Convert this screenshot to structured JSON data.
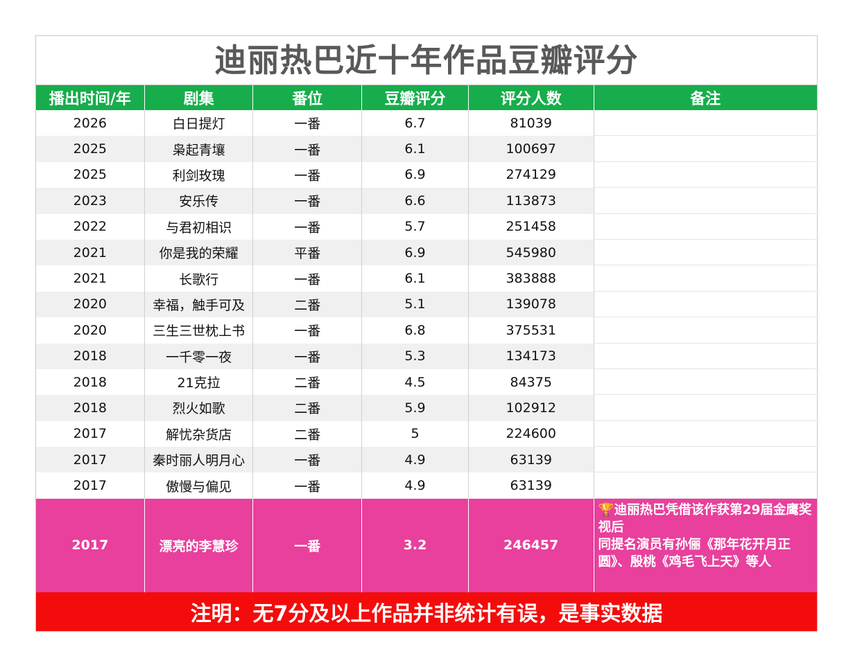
{
  "title": "迪丽热巴近十年作品豆瓣评分",
  "headers": [
    "播出时间/年",
    "剧集",
    "番位",
    "豆瓣评分",
    "评分人数",
    "备注"
  ],
  "rows": [
    {
      "year": "2026",
      "drama": "白日提灯",
      "billing": "一番",
      "score": "6.7",
      "votes": "81039",
      "note": ""
    },
    {
      "year": "2025",
      "drama": "枭起青壤",
      "billing": "一番",
      "score": "6.1",
      "votes": "100697",
      "note": ""
    },
    {
      "year": "2025",
      "drama": "利剑玫瑰",
      "billing": "一番",
      "score": "6.9",
      "votes": "274129",
      "note": ""
    },
    {
      "year": "2023",
      "drama": "安乐传",
      "billing": "一番",
      "score": "6.6",
      "votes": "113873",
      "note": ""
    },
    {
      "year": "2022",
      "drama": "与君初相识",
      "billing": "一番",
      "score": "5.7",
      "votes": "251458",
      "note": ""
    },
    {
      "year": "2021",
      "drama": "你是我的荣耀",
      "billing": "平番",
      "score": "6.9",
      "votes": "545980",
      "note": ""
    },
    {
      "year": "2021",
      "drama": "长歌行",
      "billing": "一番",
      "score": "6.1",
      "votes": "383888",
      "note": ""
    },
    {
      "year": "2020",
      "drama": "幸福，触手可及",
      "billing": "二番",
      "score": "5.1",
      "votes": "139078",
      "note": ""
    },
    {
      "year": "2020",
      "drama": "三生三世枕上书",
      "billing": "一番",
      "score": "6.8",
      "votes": "375531",
      "note": ""
    },
    {
      "year": "2018",
      "drama": "一千零一夜",
      "billing": "一番",
      "score": "5.3",
      "votes": "134173",
      "note": ""
    },
    {
      "year": "2018",
      "drama": "21克拉",
      "billing": "二番",
      "score": "4.5",
      "votes": "84375",
      "note": ""
    },
    {
      "year": "2018",
      "drama": "烈火如歌",
      "billing": "二番",
      "score": "5.9",
      "votes": "102912",
      "note": ""
    },
    {
      "year": "2017",
      "drama": "解忧杂货店",
      "billing": "二番",
      "score": "5",
      "votes": "224600",
      "note": ""
    },
    {
      "year": "2017",
      "drama": "秦时丽人明月心",
      "billing": "一番",
      "score": "4.9",
      "votes": "63139",
      "note": ""
    },
    {
      "year": "2017",
      "drama": "傲慢与偏见",
      "billing": "一番",
      "score": "4.9",
      "votes": "63139",
      "note": ""
    }
  ],
  "highlight_row": {
    "year": "2017",
    "drama": "漂亮的李慧珍",
    "billing": "一番",
    "score": "3.2",
    "votes": "246457",
    "note_icon": "trophy-icon",
    "note_line1": "迪丽热巴凭借该作获第29届金鹰奖视后",
    "note_line2": "同提名演员有孙俪《那年花开月正圆》、殷桃《鸡毛飞上天》等人"
  },
  "footer": "注明：无7分及以上作品并非统计有误，是事实数据",
  "colors": {
    "header_bg": "#17ad4c",
    "highlight_bg": "#e8409c",
    "footer_bg": "#f40c0c",
    "title_text": "#595959"
  }
}
